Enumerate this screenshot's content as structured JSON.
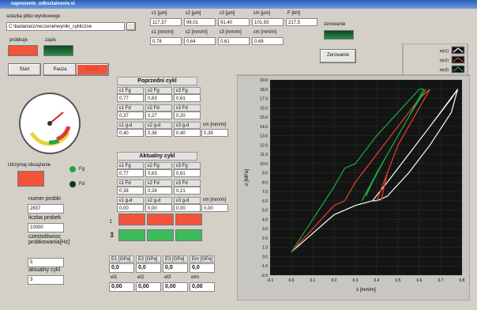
{
  "window": {
    "title": "naprezenie_odksztalcenie.vi"
  },
  "file": {
    "label": "sciezka pliku wynikowego",
    "path": "C:\\badania\\zmeczenie\\wyniki_cykliczne"
  },
  "indicators": {
    "sampling": "próbkuje",
    "saving": "zapis",
    "zeroing": "zerowanie"
  },
  "buttons": {
    "start": "Start",
    "pause": "Pauza",
    "stop": "STOP",
    "zero": "Zerowanie"
  },
  "strain_table": {
    "headers1": [
      "ε1 [µm]",
      "ε2 [µm]",
      "ε3 [µm]",
      "εm [µm]",
      "F [kN]"
    ],
    "values1": [
      "117,37",
      "98,01",
      "91,40",
      "101,93",
      "217,5"
    ],
    "headers2": [
      "ε1 [mm/m]",
      "ε2 [mm/m]",
      "ε3 [mm/m]",
      "εm [mm/m]"
    ],
    "values2": [
      "0,78",
      "0,64",
      "0,61",
      "0,68"
    ]
  },
  "hold": {
    "label": "Utrzymaj obciążenie",
    "upper": "Fg",
    "lower": "Fd"
  },
  "previous_cycle": {
    "title": "Poprzedni cykl",
    "labels": [
      [
        "ε1 Fg",
        "ε2 Fg",
        "ε3 Fg"
      ],
      [
        "ε1 Fd",
        "ε2 Fd",
        "ε3 Fd"
      ],
      [
        "ε1 g-d",
        "ε2 g-d",
        "ε3 g-d"
      ]
    ],
    "values": [
      [
        "0,77",
        "0,63",
        "0,61"
      ],
      [
        "0,37",
        "0,27",
        "0,20"
      ],
      [
        "0,40",
        "0,36",
        "0,40"
      ]
    ],
    "em_label": "εm [mm/m]",
    "em_value": "0,39"
  },
  "current_cycle": {
    "title": "Aktualny cykl",
    "labels": [
      [
        "ε1 Fg",
        "ε2 Fg",
        "ε3 Fg"
      ],
      [
        "ε1 Fd",
        "ε2 Fd",
        "ε3 Fd"
      ],
      [
        "ε1 g-d",
        "ε2 g-d",
        "ε3 g-d"
      ]
    ],
    "values": [
      [
        "0,77",
        "0,63",
        "0,61"
      ],
      [
        "0,38",
        "0,28",
        "0,21"
      ],
      [
        "0,00",
        "0,00",
        "0,00"
      ]
    ],
    "em_label": "εm [mm/m]",
    "em_value": "0,00"
  },
  "sample": {
    "number_label": "numer probki",
    "number": "2837",
    "count_label": "liczba probek",
    "count": "10000",
    "freq_label": "czestotliwosc probkowania[Hz]",
    "freq": "5",
    "cycle_label": "aktualny cykl",
    "cycle": "3"
  },
  "moduli": {
    "headers": [
      "E1 [GPa]",
      "E2 [GPa]",
      "E3 [GPa]",
      "Em [GPa]"
    ],
    "values": [
      "0,0",
      "0,0",
      "0,0",
      "0,0"
    ],
    "et_headers": [
      "et1",
      "et2",
      "et3",
      "etm"
    ],
    "et_values": [
      "0,00",
      "0,00",
      "0,00",
      "0,00"
    ]
  },
  "chart_data": {
    "type": "line",
    "x_label": "ε [mm/m]",
    "y_label": "σ [MPa]",
    "xlim": [
      -0.1,
      0.8
    ],
    "ylim": [
      -2,
      19
    ],
    "grid": true,
    "xticks": [
      -0.1,
      {
        "value": 0,
        "label": "0.0"
      },
      0.1,
      0.2,
      0.3,
      0.4,
      0.5,
      0.6,
      0.7,
      0.8
    ],
    "yticks": [
      {
        "value": -2,
        "label": "-2.0"
      },
      {
        "value": -1,
        "label": "-1.0"
      },
      {
        "value": 0,
        "label": "0.0"
      },
      {
        "value": 1,
        "label": "1.0"
      },
      {
        "value": 2,
        "label": "2.0"
      },
      {
        "value": 3,
        "label": "3.0"
      },
      {
        "value": 4,
        "label": "4.0"
      },
      {
        "value": 5,
        "label": "5.0"
      },
      {
        "value": 6,
        "label": "6.0"
      },
      {
        "value": 7,
        "label": "7.0"
      },
      {
        "value": 8,
        "label": "8.0"
      },
      {
        "value": 9,
        "label": "9.0"
      },
      {
        "value": 10,
        "label": "10.0"
      },
      {
        "value": 11,
        "label": "11.0"
      },
      {
        "value": 12,
        "label": "12.0"
      },
      {
        "value": 13,
        "label": "13.0"
      },
      {
        "value": 14,
        "label": "14.0"
      },
      {
        "value": 15,
        "label": "15.0"
      },
      {
        "value": 16,
        "label": "16.0"
      },
      {
        "value": 17,
        "label": "17.0"
      },
      {
        "value": 18,
        "label": "18.0"
      },
      {
        "value": 19,
        "label": "19.0"
      }
    ],
    "series": [
      {
        "name": "σ(ε1)",
        "color": "#ffffff",
        "x": [
          0.0,
          0.1,
          0.2,
          0.3,
          0.38,
          0.45,
          0.55,
          0.65,
          0.75,
          0.78,
          0.75,
          0.65,
          0.55,
          0.45,
          0.4,
          0.38,
          0.45,
          0.55,
          0.65,
          0.78,
          0.75
        ],
        "values": [
          0.5,
          2.5,
          4.5,
          5.5,
          6,
          8,
          11,
          14,
          17,
          18,
          15.5,
          12,
          9,
          6.5,
          6,
          6,
          8,
          11,
          14,
          18,
          15.5
        ]
      },
      {
        "name": "σ(ε2)",
        "color": "#e8412c",
        "x": [
          0.0,
          0.1,
          0.2,
          0.25,
          0.3,
          0.4,
          0.5,
          0.6,
          0.65,
          0.6,
          0.5,
          0.45,
          0.4,
          0.45,
          0.5,
          0.6,
          0.65,
          0.6,
          0.5,
          0.45,
          0.42
        ],
        "values": [
          0.5,
          3,
          5.5,
          6,
          8,
          11,
          14,
          17,
          18,
          16,
          12,
          9,
          6,
          9,
          12,
          16,
          18,
          16,
          12,
          9,
          6
        ]
      },
      {
        "name": "σ(ε3)",
        "color": "#1fa84a",
        "x": [
          0.0,
          0.1,
          0.2,
          0.25,
          0.3,
          0.4,
          0.5,
          0.6,
          0.62,
          0.55,
          0.45,
          0.38,
          0.33,
          0.4,
          0.5,
          0.6,
          0.63,
          0.55,
          0.45,
          0.38,
          0.35
        ],
        "values": [
          0.5,
          4,
          7.5,
          9.5,
          10,
          13,
          15.5,
          18,
          18,
          15,
          11,
          8,
          6,
          9,
          13,
          17,
          18,
          15,
          11,
          8,
          6.5
        ]
      }
    ]
  }
}
